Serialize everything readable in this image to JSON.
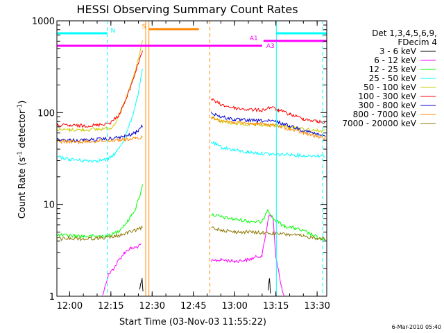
{
  "chart_data": {
    "type": "line",
    "title": "HESSI Observing Summary Count Rates",
    "xlabel": "Start Time (03-Nov-03 11:55:22)",
    "ylabel": "Count Rate (s",
    "ylabel_sup": "-1",
    "ylabel_mid": " detector",
    "ylabel_sup2": "-1",
    "ylabel_end": ")",
    "y_scale": "log",
    "ylim": [
      1,
      1000
    ],
    "xlim": [
      "11:55:22",
      "13:33:30"
    ],
    "x_ticks": [
      "12:00",
      "12:15",
      "12:30",
      "12:45",
      "13:00",
      "13:15",
      "13:30"
    ],
    "y_ticks": [
      "1",
      "10",
      "100",
      "1000"
    ],
    "legend_header": [
      "Det 1,3,4,5,6,9,",
      "FDecim 4"
    ],
    "series": [
      {
        "name": "3 - 6 keV",
        "color": "#000000",
        "points": [
          [
            "12:25:30",
            1.2
          ],
          [
            "12:26:20",
            1.6
          ],
          [
            "12:26:40",
            1.1
          ],
          [
            "13:12:10",
            1.2
          ],
          [
            "13:12:40",
            1.6
          ],
          [
            "13:13:00",
            1.1
          ]
        ]
      },
      {
        "name": "6 - 12 keV",
        "color": "#ff00ff",
        "points": [
          [
            "12:12:00",
            1.0
          ],
          [
            "12:14:00",
            1.7
          ],
          [
            "12:16:00",
            2.0
          ],
          [
            "12:18:00",
            2.5
          ],
          [
            "12:20:00",
            3.0
          ],
          [
            "12:22:00",
            3.3
          ],
          [
            "12:24:00",
            3.4
          ],
          [
            "12:26:00",
            3.6
          ],
          [
            "12:51:30",
            2.4
          ],
          [
            "12:55:00",
            2.5
          ],
          [
            "13:00:00",
            2.4
          ],
          [
            "13:05:00",
            2.5
          ],
          [
            "13:10:00",
            2.8
          ],
          [
            "13:12:30",
            7.8
          ],
          [
            "13:14:00",
            7.0
          ],
          [
            "13:15:00",
            2.6
          ],
          [
            "13:17:00",
            1.3
          ],
          [
            "13:18:00",
            1.0
          ]
        ]
      },
      {
        "name": "12 - 25 keV",
        "color": "#00ff00",
        "points": [
          [
            "11:55:22",
            4.6
          ],
          [
            "12:00:00",
            4.6
          ],
          [
            "12:05:00",
            4.5
          ],
          [
            "12:10:00",
            4.5
          ],
          [
            "12:15:00",
            4.6
          ],
          [
            "12:18:00",
            5.2
          ],
          [
            "12:21:00",
            6.5
          ],
          [
            "12:24:00",
            9.0
          ],
          [
            "12:26:00",
            14.0
          ],
          [
            "12:26:30",
            17.0
          ],
          [
            "12:51:30",
            7.8
          ],
          [
            "12:55:00",
            7.3
          ],
          [
            "13:00:00",
            6.9
          ],
          [
            "13:05:00",
            6.6
          ],
          [
            "13:10:00",
            6.4
          ],
          [
            "13:12:00",
            9.0
          ],
          [
            "13:14:00",
            7.0
          ],
          [
            "13:18:00",
            5.8
          ],
          [
            "13:22:00",
            5.5
          ],
          [
            "13:26:00",
            5.0
          ],
          [
            "13:30:00",
            4.4
          ],
          [
            "13:33:00",
            4.0
          ]
        ]
      },
      {
        "name": "25 - 50 keV",
        "color": "#00ffff",
        "points": [
          [
            "11:55:22",
            33
          ],
          [
            "12:00:00",
            31
          ],
          [
            "12:05:00",
            30
          ],
          [
            "12:10:00",
            30
          ],
          [
            "12:14:00",
            31
          ],
          [
            "12:17:00",
            37
          ],
          [
            "12:20:00",
            52
          ],
          [
            "12:23:00",
            95
          ],
          [
            "12:25:00",
            160
          ],
          [
            "12:26:30",
            300
          ],
          [
            "12:51:30",
            48
          ],
          [
            "12:55:00",
            42
          ],
          [
            "13:00:00",
            39
          ],
          [
            "13:05:00",
            37
          ],
          [
            "13:10:00",
            36
          ],
          [
            "13:15:00",
            35
          ],
          [
            "13:20:00",
            35
          ],
          [
            "13:25:00",
            34
          ],
          [
            "13:30:00",
            34
          ],
          [
            "13:33:00",
            34
          ]
        ]
      },
      {
        "name": "50 - 100 keV",
        "color": "#cccc00",
        "points": [
          [
            "11:55:22",
            65
          ],
          [
            "12:00:00",
            65
          ],
          [
            "12:05:00",
            65
          ],
          [
            "12:10:00",
            66
          ],
          [
            "12:15:00",
            68
          ],
          [
            "12:17:00",
            80
          ],
          [
            "12:20:00",
            130
          ],
          [
            "12:23:00",
            230
          ],
          [
            "12:25:00",
            380
          ],
          [
            "12:26:30",
            600
          ],
          [
            "12:51:30",
            90
          ],
          [
            "12:55:00",
            80
          ],
          [
            "13:00:00",
            76
          ],
          [
            "13:05:00",
            74
          ],
          [
            "13:10:00",
            73
          ],
          [
            "13:15:00",
            72
          ],
          [
            "13:20:00",
            70
          ],
          [
            "13:25:00",
            66
          ],
          [
            "13:30:00",
            64
          ],
          [
            "13:33:00",
            63
          ]
        ]
      },
      {
        "name": "100 - 300 keV",
        "color": "#ff0000",
        "points": [
          [
            "11:55:22",
            73
          ],
          [
            "12:00:00",
            72
          ],
          [
            "12:05:00",
            72
          ],
          [
            "12:10:00",
            73
          ],
          [
            "12:15:00",
            78
          ],
          [
            "12:18:00",
            95
          ],
          [
            "12:21:00",
            150
          ],
          [
            "12:24:00",
            280
          ],
          [
            "12:26:30",
            480
          ],
          [
            "12:51:30",
            140
          ],
          [
            "12:55:00",
            122
          ],
          [
            "13:00:00",
            112
          ],
          [
            "13:05:00",
            108
          ],
          [
            "13:10:00",
            106
          ],
          [
            "13:13:00",
            115
          ],
          [
            "13:16:00",
            106
          ],
          [
            "13:20:00",
            96
          ],
          [
            "13:25:00",
            86
          ],
          [
            "13:30:00",
            80
          ],
          [
            "13:33:00",
            78
          ]
        ]
      },
      {
        "name": "300 - 800 keV",
        "color": "#0000cc",
        "points": [
          [
            "11:55:22",
            51
          ],
          [
            "12:00:00",
            50
          ],
          [
            "12:05:00",
            50
          ],
          [
            "12:10:00",
            51
          ],
          [
            "12:15:00",
            52
          ],
          [
            "12:20:00",
            55
          ],
          [
            "12:24:00",
            60
          ],
          [
            "12:26:30",
            72
          ],
          [
            "12:51:30",
            100
          ],
          [
            "12:55:00",
            90
          ],
          [
            "13:00:00",
            84
          ],
          [
            "13:05:00",
            82
          ],
          [
            "13:10:00",
            81
          ],
          [
            "13:15:00",
            80
          ],
          [
            "13:20:00",
            72
          ],
          [
            "13:25:00",
            64
          ],
          [
            "13:30:00",
            58
          ],
          [
            "13:33:00",
            55
          ]
        ]
      },
      {
        "name": "800 - 7000 keV",
        "color": "#ff8800",
        "points": [
          [
            "11:55:22",
            49
          ],
          [
            "12:00:00",
            48
          ],
          [
            "12:05:00",
            48
          ],
          [
            "12:10:00",
            49
          ],
          [
            "12:15:00",
            50
          ],
          [
            "12:20:00",
            51
          ],
          [
            "12:24:00",
            52
          ],
          [
            "12:26:30",
            54
          ],
          [
            "12:51:30",
            88
          ],
          [
            "12:55:00",
            82
          ],
          [
            "13:00:00",
            78
          ],
          [
            "13:05:00",
            76
          ],
          [
            "13:10:00",
            75
          ],
          [
            "13:15:00",
            73
          ],
          [
            "13:20:00",
            66
          ],
          [
            "13:25:00",
            60
          ],
          [
            "13:30:00",
            55
          ],
          [
            "13:33:00",
            53
          ]
        ]
      },
      {
        "name": "7000 - 20000 keV",
        "color": "#8b7500",
        "points": [
          [
            "11:55:22",
            4.2
          ],
          [
            "12:00:00",
            4.3
          ],
          [
            "12:05:00",
            4.2
          ],
          [
            "12:10:00",
            4.3
          ],
          [
            "12:15:00",
            4.4
          ],
          [
            "12:18:00",
            4.6
          ],
          [
            "12:21:00",
            4.9
          ],
          [
            "12:24:00",
            5.2
          ],
          [
            "12:26:30",
            5.6
          ],
          [
            "12:51:30",
            5.6
          ],
          [
            "12:55:00",
            5.3
          ],
          [
            "13:00:00",
            5.0
          ],
          [
            "13:05:00",
            5.0
          ],
          [
            "13:10:00",
            4.9
          ],
          [
            "13:15:00",
            4.8
          ],
          [
            "13:20:00",
            4.7
          ],
          [
            "13:25:00",
            4.5
          ],
          [
            "13:30:00",
            4.3
          ],
          [
            "13:33:00",
            4.2
          ]
        ]
      }
    ],
    "vertical_markers": [
      {
        "time": "12:13:40",
        "color": "#00ffff",
        "style": "dashed"
      },
      {
        "time": "12:27:40",
        "color": "#ff8800",
        "style": "solid"
      },
      {
        "time": "12:28:50",
        "color": "#ff8800",
        "style": "solid"
      },
      {
        "time": "12:51:00",
        "color": "#ff8800",
        "style": "dashed"
      },
      {
        "time": "13:15:10",
        "color": "#00ffff",
        "style": "solid"
      },
      {
        "time": "13:32:00",
        "color": "#00ffff",
        "style": "dashed"
      }
    ],
    "flag_bars": [
      {
        "label": "N",
        "color": "#00ffff",
        "start": "11:55:22",
        "end": "12:13:40",
        "level": "top"
      },
      {
        "label": "N",
        "color": "#00ffff",
        "start": "13:15:10",
        "end": "13:33:30",
        "level": "top"
      },
      {
        "label": "S",
        "color": "#ff8800",
        "start": "12:28:50",
        "end": "12:47:00",
        "level": "upper"
      },
      {
        "label": "A1",
        "color": "#ff00ff",
        "start": "13:10:30",
        "end": "13:33:30",
        "level": "middle"
      },
      {
        "label": "A3",
        "color": "#ff00ff",
        "start": "11:55:22",
        "end": "13:10:00",
        "level": "lower"
      }
    ]
  },
  "timestamp": "6-Mar-2010 05:40"
}
